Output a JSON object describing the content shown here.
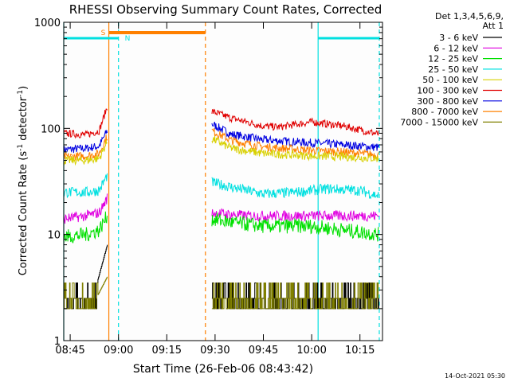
{
  "chart_data": {
    "type": "line",
    "title": "RHESSI Observing Summary Count Rates, Corrected",
    "xlabel": "Start Time (26-Feb-06 08:43:42)",
    "ylabel_parts": [
      "Corrected Count Rate (s",
      "-1",
      " detector",
      "-1",
      ")"
    ],
    "y_scale": "log",
    "ylim": [
      1,
      1000
    ],
    "y_ticks": [
      {
        "value": 1,
        "label": "1"
      },
      {
        "value": 10,
        "label": "10"
      },
      {
        "value": 100,
        "label": "100"
      },
      {
        "value": 1000,
        "label": "1000"
      }
    ],
    "x_range_min": [
      "08:43",
      "10:22"
    ],
    "x_ticks": [
      "08:45",
      "09:00",
      "09:15",
      "09:30",
      "09:45",
      "10:00",
      "10:15"
    ],
    "legend": {
      "placement": "right",
      "header": [
        "Det 1,3,4,5,6,9,",
        "Att 1"
      ],
      "entries": [
        {
          "label": "3 - 6 keV",
          "color": "#000000"
        },
        {
          "label": "6 - 12 keV",
          "color": "#e000e0"
        },
        {
          "label": "12 - 25 keV",
          "color": "#00e000"
        },
        {
          "label": "25 - 50 keV",
          "color": "#00e0e0"
        },
        {
          "label": "50 - 100 keV",
          "color": "#d8d000"
        },
        {
          "label": "100 - 300 keV",
          "color": "#e00000"
        },
        {
          "label": "300 - 800 keV",
          "color": "#0000e0"
        },
        {
          "label": "800 - 7000 keV",
          "color": "#ff8000"
        },
        {
          "label": "7000 - 15000 keV",
          "color": "#808000"
        }
      ]
    },
    "bands": [
      {
        "name": "300 - 800 keV",
        "color": "#0000e0",
        "noise": 0.04,
        "points": [
          [
            "08:43",
            63
          ],
          [
            "08:50",
            65
          ],
          [
            "08:54",
            68
          ],
          [
            "08:56.5",
            95
          ]
        ],
        "points2": [
          [
            "09:29",
            110
          ],
          [
            "09:35",
            88
          ],
          [
            "09:45",
            78
          ],
          [
            "10:00",
            73
          ],
          [
            "10:10",
            70
          ],
          [
            "10:21",
            66
          ]
        ]
      },
      {
        "name": "100 - 300 keV",
        "color": "#e00000",
        "noise": 0.035,
        "points": [
          [
            "08:43",
            90
          ],
          [
            "08:50",
            87
          ],
          [
            "08:54",
            95
          ],
          [
            "08:56.5",
            160
          ]
        ],
        "points2": [
          [
            "09:29",
            145
          ],
          [
            "09:35",
            125
          ],
          [
            "09:45",
            105
          ],
          [
            "09:50",
            103
          ],
          [
            "10:00",
            115
          ],
          [
            "10:10",
            105
          ],
          [
            "10:21",
            88
          ]
        ]
      },
      {
        "name": "800 - 7000 keV",
        "color": "#ff8000",
        "noise": 0.04,
        "points": [
          [
            "08:43",
            54
          ],
          [
            "08:50",
            55
          ],
          [
            "08:54",
            58
          ],
          [
            "08:56.5",
            85
          ]
        ],
        "points2": [
          [
            "09:29",
            95
          ],
          [
            "09:35",
            77
          ],
          [
            "09:45",
            67
          ],
          [
            "10:00",
            62
          ],
          [
            "10:10",
            60
          ],
          [
            "10:21",
            56
          ]
        ]
      },
      {
        "name": "50 - 100 keV",
        "color": "#d8d000",
        "noise": 0.04,
        "points": [
          [
            "08:43",
            50
          ],
          [
            "08:50",
            50
          ],
          [
            "08:54",
            52
          ],
          [
            "08:56.5",
            75
          ]
        ],
        "points2": [
          [
            "09:29",
            80
          ],
          [
            "09:35",
            65
          ],
          [
            "09:45",
            58
          ],
          [
            "10:00",
            55
          ],
          [
            "10:10",
            54
          ],
          [
            "10:21",
            52
          ]
        ]
      },
      {
        "name": "25 - 50 keV",
        "color": "#00e0e0",
        "noise": 0.05,
        "points": [
          [
            "08:43",
            25
          ],
          [
            "08:50",
            25
          ],
          [
            "08:54",
            26
          ],
          [
            "08:56.5",
            36
          ]
        ],
        "points2": [
          [
            "09:29",
            31
          ],
          [
            "09:35",
            28
          ],
          [
            "09:45",
            24
          ],
          [
            "09:55",
            25
          ],
          [
            "10:05",
            27
          ],
          [
            "10:15",
            26
          ],
          [
            "10:21",
            23
          ]
        ]
      },
      {
        "name": "6 - 12 keV",
        "color": "#e000e0",
        "noise": 0.05,
        "points": [
          [
            "08:43",
            14
          ],
          [
            "08:50",
            15
          ],
          [
            "08:54",
            16
          ],
          [
            "08:56.5",
            22
          ]
        ],
        "points2": [
          [
            "09:29",
            16
          ],
          [
            "09:40",
            15
          ],
          [
            "10:00",
            15
          ],
          [
            "10:21",
            15
          ]
        ]
      },
      {
        "name": "12 - 25 keV",
        "color": "#00e000",
        "noise": 0.07,
        "points": [
          [
            "08:43",
            9.5
          ],
          [
            "08:50",
            10
          ],
          [
            "08:54",
            11
          ],
          [
            "08:56.5",
            15
          ]
        ],
        "points2": [
          [
            "09:29",
            14
          ],
          [
            "09:35",
            13
          ],
          [
            "09:45",
            12
          ],
          [
            "10:00",
            12
          ],
          [
            "10:10",
            11
          ],
          [
            "10:21",
            10
          ]
        ]
      },
      {
        "name": "3 - 6 keV",
        "color": "#000000",
        "noise": 0.0,
        "steppy": true,
        "points": [
          [
            "08:43",
            2
          ],
          [
            "08:49",
            2.2
          ],
          [
            "08:52",
            2.5
          ],
          [
            "08:56.5",
            8
          ]
        ],
        "points2": [
          [
            "09:29",
            2.5
          ],
          [
            "09:45",
            2.5
          ],
          [
            "10:00",
            2.8
          ],
          [
            "10:21",
            2.5
          ]
        ]
      },
      {
        "name": "7000 - 15000 keV",
        "color": "#808000",
        "noise": 0.0,
        "steppy": true,
        "points": [
          [
            "08:43",
            2.2
          ],
          [
            "08:50",
            2.5
          ],
          [
            "08:53",
            2.5
          ],
          [
            "08:56.5",
            4
          ]
        ],
        "points2": [
          [
            "09:29",
            2.5
          ],
          [
            "09:45",
            3
          ],
          [
            "10:00",
            3
          ],
          [
            "10:21",
            2.8
          ]
        ]
      }
    ],
    "attenuator_flags": [
      {
        "label": "S",
        "color": "#ff8000",
        "start": "08:57",
        "end": "09:27"
      }
    ],
    "night_flags": [
      {
        "label": "N",
        "color": "#00e0e0",
        "start": "08:43",
        "end": "09:00"
      },
      {
        "label": "",
        "color": "#00e0e0",
        "start": "10:02",
        "end": "10:21"
      }
    ],
    "vertical_markers": [
      {
        "t": "08:57",
        "color": "#ff8000",
        "style": "solid"
      },
      {
        "t": "09:27",
        "color": "#ff8000",
        "style": "dashed"
      },
      {
        "t": "09:00",
        "color": "#00e0e0",
        "style": "dashed"
      },
      {
        "t": "10:02",
        "color": "#00e0e0",
        "style": "solid"
      },
      {
        "t": "10:21",
        "color": "#00e0e0",
        "style": "dashed"
      },
      {
        "t": "08:43",
        "color": "#00e0e0",
        "style": "solid"
      }
    ],
    "footer_timestamp": "14-Oct-2021 05:30"
  }
}
